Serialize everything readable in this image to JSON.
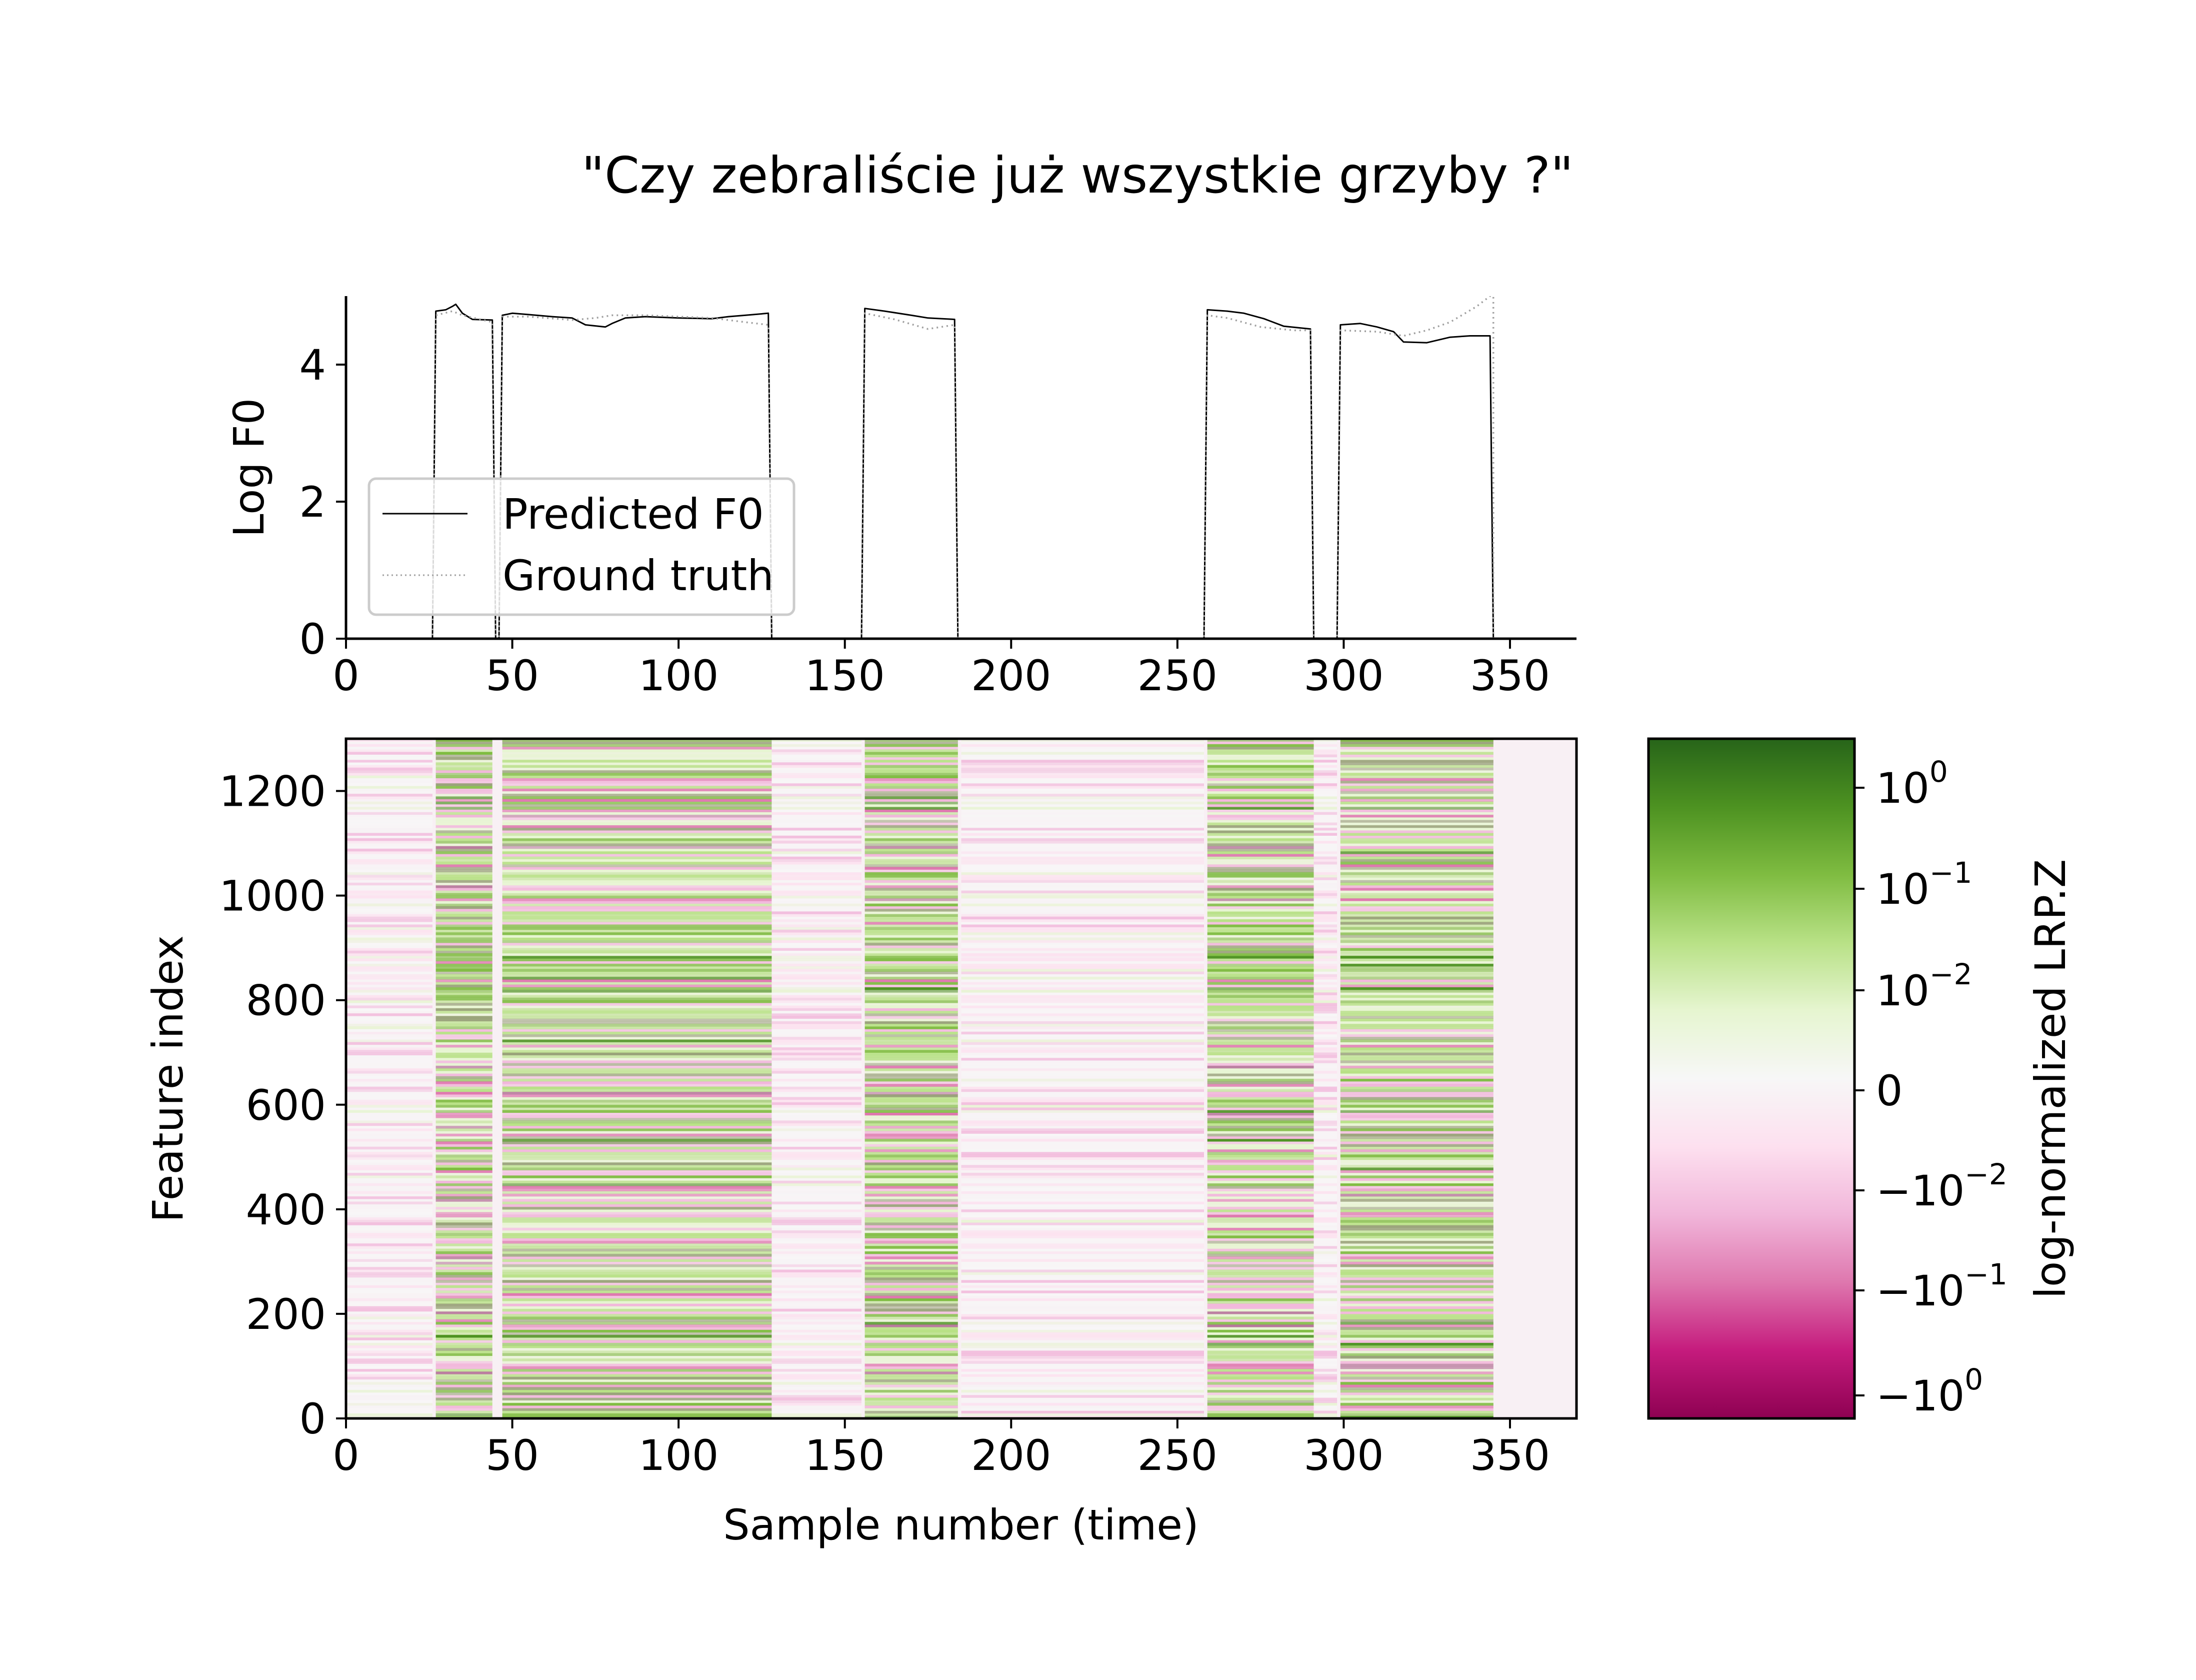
{
  "title": "\"Czy zebraliście już wszystkie grzyby ?\"",
  "chart_data": [
    {
      "type": "line",
      "ylabel": "Log F0",
      "xlabel": "",
      "xlim": [
        0,
        370
      ],
      "ylim": [
        0,
        5
      ],
      "xticks": [
        "0",
        "50",
        "100",
        "150",
        "200",
        "250",
        "300",
        "350"
      ],
      "yticks": [
        "0",
        "2",
        "4"
      ],
      "legend_position": "lower-left",
      "series": [
        {
          "name": "Predicted F0",
          "style": "solid",
          "color": "#000000",
          "points": [
            [
              0,
              0
            ],
            [
              26,
              0
            ],
            [
              27,
              4.78
            ],
            [
              30,
              4.8
            ],
            [
              32,
              4.85
            ],
            [
              33,
              4.88
            ],
            [
              35,
              4.75
            ],
            [
              38,
              4.66
            ],
            [
              44,
              4.65
            ],
            [
              45,
              0
            ],
            [
              46,
              0
            ],
            [
              47,
              4.72
            ],
            [
              50,
              4.75
            ],
            [
              55,
              4.73
            ],
            [
              62,
              4.7
            ],
            [
              68,
              4.68
            ],
            [
              72,
              4.58
            ],
            [
              78,
              4.55
            ],
            [
              80,
              4.6
            ],
            [
              84,
              4.68
            ],
            [
              90,
              4.7
            ],
            [
              100,
              4.68
            ],
            [
              110,
              4.67
            ],
            [
              115,
              4.7
            ],
            [
              120,
              4.72
            ],
            [
              127,
              4.75
            ],
            [
              128,
              0
            ],
            [
              155,
              0
            ],
            [
              156,
              4.82
            ],
            [
              162,
              4.78
            ],
            [
              170,
              4.72
            ],
            [
              175,
              4.68
            ],
            [
              183,
              4.66
            ],
            [
              184,
              0
            ],
            [
              258,
              0
            ],
            [
              259,
              4.8
            ],
            [
              265,
              4.78
            ],
            [
              270,
              4.75
            ],
            [
              276,
              4.67
            ],
            [
              282,
              4.56
            ],
            [
              290,
              4.52
            ],
            [
              291,
              0
            ],
            [
              298,
              0
            ],
            [
              299,
              4.58
            ],
            [
              305,
              4.6
            ],
            [
              310,
              4.55
            ],
            [
              315,
              4.48
            ],
            [
              318,
              4.33
            ],
            [
              325,
              4.32
            ],
            [
              332,
              4.4
            ],
            [
              338,
              4.42
            ],
            [
              344,
              4.42
            ],
            [
              345,
              0
            ],
            [
              370,
              0
            ]
          ]
        },
        {
          "name": "Ground truth",
          "style": "dotted",
          "color": "#a0a0a0",
          "points": [
            [
              0,
              0
            ],
            [
              26,
              0
            ],
            [
              27,
              4.72
            ],
            [
              32,
              4.78
            ],
            [
              35,
              4.72
            ],
            [
              44,
              4.62
            ],
            [
              45,
              0
            ],
            [
              46,
              0
            ],
            [
              47,
              4.7
            ],
            [
              55,
              4.7
            ],
            [
              68,
              4.65
            ],
            [
              75,
              4.68
            ],
            [
              80,
              4.72
            ],
            [
              90,
              4.72
            ],
            [
              100,
              4.7
            ],
            [
              110,
              4.68
            ],
            [
              120,
              4.62
            ],
            [
              127,
              4.58
            ],
            [
              128,
              0
            ],
            [
              155,
              0
            ],
            [
              156,
              4.75
            ],
            [
              165,
              4.66
            ],
            [
              175,
              4.52
            ],
            [
              183,
              4.58
            ],
            [
              184,
              0
            ],
            [
              258,
              0
            ],
            [
              259,
              4.72
            ],
            [
              265,
              4.68
            ],
            [
              275,
              4.55
            ],
            [
              285,
              4.5
            ],
            [
              290,
              4.5
            ],
            [
              291,
              0
            ],
            [
              298,
              0
            ],
            [
              299,
              4.5
            ],
            [
              310,
              4.48
            ],
            [
              318,
              4.42
            ],
            [
              325,
              4.5
            ],
            [
              332,
              4.62
            ],
            [
              340,
              4.85
            ],
            [
              344,
              5.0
            ],
            [
              345,
              5.0
            ],
            [
              345,
              0
            ],
            [
              370,
              0
            ]
          ]
        }
      ]
    },
    {
      "type": "heatmap",
      "xlabel": "Sample number (time)",
      "ylabel": "Feature index",
      "xlim": [
        0,
        370
      ],
      "ylim": [
        0,
        1300
      ],
      "xticks": [
        "0",
        "50",
        "100",
        "150",
        "200",
        "250",
        "300",
        "350"
      ],
      "yticks": [
        "0",
        "200",
        "400",
        "600",
        "800",
        "1000",
        "1200"
      ],
      "colormap": "PiYG",
      "colorbar": {
        "label": "log-normalized LRP.Z",
        "ticks": [
          {
            "base": "10",
            "exp": "0",
            "sign": ""
          },
          {
            "base": "10",
            "exp": "−1",
            "sign": ""
          },
          {
            "base": "10",
            "exp": "−2",
            "sign": ""
          },
          {
            "base": "0",
            "exp": "",
            "sign": ""
          },
          {
            "base": "10",
            "exp": "−2",
            "sign": "−"
          },
          {
            "base": "10",
            "exp": "−1",
            "sign": "−"
          },
          {
            "base": "10",
            "exp": "0",
            "sign": "−"
          }
        ],
        "colors": [
          "#276419",
          "#4d9221",
          "#7fbc41",
          "#b8e186",
          "#e6f5d0",
          "#f7f7f7",
          "#fde0ef",
          "#f1b6da",
          "#de77ae",
          "#c51b7d",
          "#8e0152"
        ]
      },
      "active_segments": [
        [
          27,
          44
        ],
        [
          47,
          128
        ],
        [
          156,
          184
        ],
        [
          259,
          291
        ],
        [
          299,
          345
        ]
      ],
      "weak_segments": [
        [
          0,
          26
        ],
        [
          128,
          155
        ],
        [
          185,
          258
        ],
        [
          291,
          298
        ]
      ],
      "empty_after": 345
    }
  ]
}
